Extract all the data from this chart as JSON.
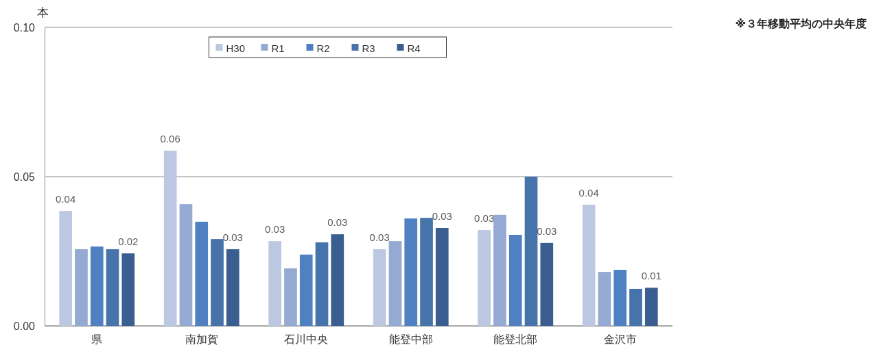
{
  "chart_data": {
    "type": "bar",
    "ylabel": "本",
    "annotations": [
      "※３年移動平均の中央年度"
    ],
    "categories": [
      "県",
      "南加賀",
      "石川中央",
      "能登中部",
      "能登北部",
      "金沢市"
    ],
    "series": [
      {
        "name": "H30",
        "color": "#bcc8e2",
        "values": [
          0.0385,
          0.0587,
          0.0284,
          0.0257,
          0.0321,
          0.0406
        ],
        "value_labels": [
          "0.04",
          "0.06",
          "0.03",
          "0.03",
          "0.03",
          "0.04"
        ]
      },
      {
        "name": "R1",
        "color": "#94aad3",
        "values": [
          0.0257,
          0.0408,
          0.0193,
          0.0284,
          0.0372,
          0.0181
        ]
      },
      {
        "name": "R2",
        "color": "#4f81c2",
        "values": [
          0.0266,
          0.0349,
          0.0239,
          0.036,
          0.0305,
          0.0188
        ]
      },
      {
        "name": "R3",
        "color": "#4673aa",
        "values": [
          0.0257,
          0.0291,
          0.028,
          0.0362,
          0.05,
          0.0124
        ]
      },
      {
        "name": "R4",
        "color": "#3a5e90",
        "values": [
          0.0243,
          0.0257,
          0.0307,
          0.0328,
          0.0278,
          0.0128
        ],
        "value_labels": [
          "0.02",
          "0.03",
          "0.03",
          "0.03",
          "0.03",
          "0.01"
        ]
      }
    ],
    "ylim": [
      0,
      0.1
    ],
    "yticks": [
      {
        "value": 0,
        "label": "0.00"
      },
      {
        "value": 0.05,
        "label": "0.05"
      },
      {
        "value": 0.1,
        "label": "0.10"
      }
    ],
    "grid": "y",
    "legend": "top"
  }
}
